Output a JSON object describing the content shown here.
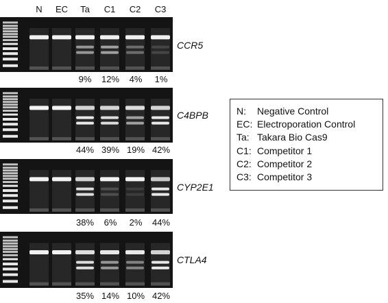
{
  "lanes": [
    "N",
    "EC",
    "Ta",
    "C1",
    "C2",
    "C3"
  ],
  "gels": [
    {
      "gene": "CCR5",
      "percents": [
        "",
        "",
        "9%",
        "12%",
        "4%",
        "1%"
      ],
      "cut": [
        0,
        0,
        0.55,
        0.6,
        0.35,
        0.15
      ],
      "main": [
        1,
        1,
        1,
        1,
        1,
        1
      ]
    },
    {
      "gene": "C4BPB",
      "percents": [
        "",
        "",
        "44%",
        "39%",
        "19%",
        "42%"
      ],
      "cut": [
        0,
        0,
        0.95,
        0.9,
        0.6,
        0.95
      ],
      "main": [
        1,
        1,
        0.85,
        0.85,
        0.9,
        0.85
      ]
    },
    {
      "gene": "CYP2E1",
      "percents": [
        "",
        "",
        "38%",
        "6%",
        "2%",
        "44%"
      ],
      "cut": [
        0,
        0,
        0.9,
        0.2,
        0.1,
        0.95
      ],
      "main": [
        1,
        1,
        0.85,
        1,
        1,
        0.8
      ]
    },
    {
      "gene": "CTLA4",
      "percents": [
        "",
        "",
        "35%",
        "14%",
        "10%",
        "42%"
      ],
      "cut": [
        0,
        0,
        0.9,
        0.55,
        0.45,
        0.95
      ],
      "main": [
        1,
        1,
        0.9,
        0.95,
        0.95,
        0.85
      ]
    }
  ],
  "legend": [
    {
      "key": "N:",
      "label": "Negative Control"
    },
    {
      "key": "EC:",
      "label": "Electroporation Control"
    },
    {
      "key": "Ta:",
      "label": "Takara Bio Cas9"
    },
    {
      "key": "C1:",
      "label": "Competitor 1"
    },
    {
      "key": "C2:",
      "label": "Competitor 2"
    },
    {
      "key": "C3:",
      "label": "Competitor 3"
    }
  ],
  "colors": {
    "gel_bg": "#141414",
    "band": "#f2f2f2"
  }
}
